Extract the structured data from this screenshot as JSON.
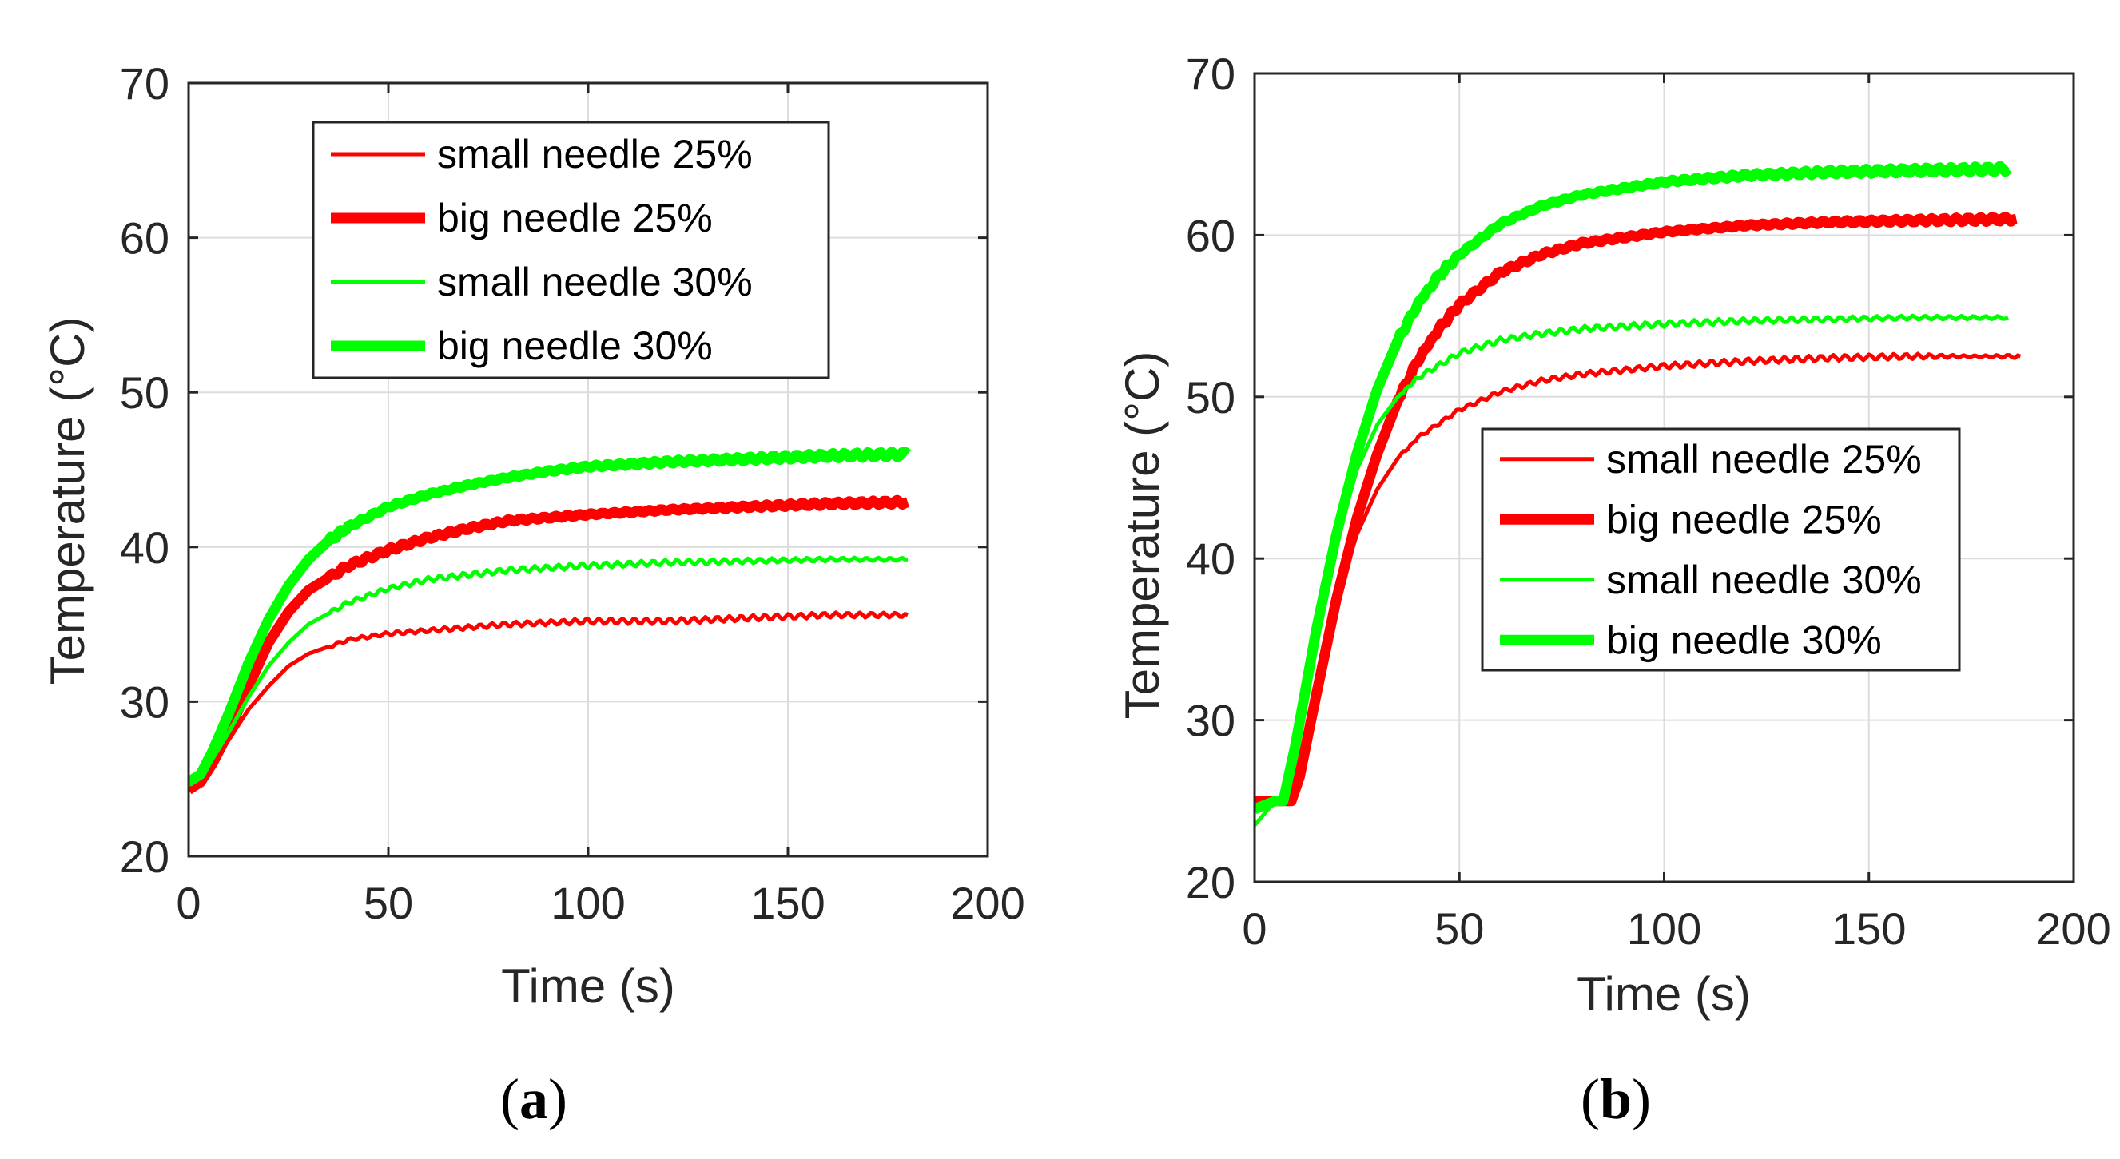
{
  "chart_data": [
    {
      "type": "line",
      "caption": {
        "open": "(",
        "letter": "a",
        "close": ")"
      },
      "xlabel": "Time (s)",
      "ylabel": "Temperature (°C)",
      "xlim": [
        0,
        200
      ],
      "ylim": [
        20,
        70
      ],
      "xticks": [
        0,
        50,
        100,
        150,
        200
      ],
      "yticks": [
        20,
        30,
        40,
        50,
        60,
        70
      ],
      "grid": true,
      "legend_position": "top-center",
      "series": [
        {
          "name": "small needle 25%",
          "color": "#ff0000",
          "weight": "thin",
          "x": [
            0,
            3,
            6,
            10,
            15,
            20,
            25,
            30,
            40,
            50,
            60,
            80,
            100,
            120,
            140,
            160,
            180
          ],
          "y": [
            24.5,
            25,
            26,
            27.5,
            29.5,
            31,
            32.3,
            33.1,
            34,
            34.4,
            34.6,
            35,
            35.2,
            35.2,
            35.4,
            35.6,
            35.6
          ]
        },
        {
          "name": "big needle 25%",
          "color": "#ff0000",
          "weight": "thick",
          "x": [
            0,
            3,
            6,
            10,
            15,
            20,
            25,
            30,
            40,
            50,
            60,
            70,
            80,
            100,
            120,
            140,
            160,
            180
          ],
          "y": [
            24.3,
            24.8,
            26,
            28,
            31,
            33.8,
            35.8,
            37.2,
            38.8,
            39.8,
            40.6,
            41.2,
            41.7,
            42.1,
            42.4,
            42.6,
            42.8,
            42.9
          ]
        },
        {
          "name": "small needle 30%",
          "color": "#00ff00",
          "weight": "thin",
          "x": [
            0,
            3,
            6,
            10,
            15,
            20,
            25,
            30,
            40,
            50,
            60,
            80,
            100,
            120,
            140,
            160,
            180
          ],
          "y": [
            24.6,
            25.2,
            26.3,
            28,
            30.3,
            32.3,
            33.8,
            35,
            36.4,
            37.3,
            37.9,
            38.5,
            38.8,
            39,
            39.1,
            39.2,
            39.2
          ]
        },
        {
          "name": "big needle 30%",
          "color": "#00ff00",
          "weight": "thick",
          "x": [
            0,
            3,
            6,
            10,
            15,
            20,
            25,
            30,
            35,
            40,
            50,
            60,
            70,
            80,
            90,
            100,
            120,
            140,
            160,
            180
          ],
          "y": [
            24.8,
            25.3,
            26.8,
            29.2,
            32.5,
            35.3,
            37.5,
            39.2,
            40.4,
            41.3,
            42.6,
            43.4,
            44,
            44.5,
            44.9,
            45.2,
            45.5,
            45.7,
            45.9,
            46
          ]
        }
      ]
    },
    {
      "type": "line",
      "caption": {
        "open": "(",
        "letter": "b",
        "close": ")"
      },
      "xlabel": "Time (s)",
      "ylabel": "Temperature (°C)",
      "xlim": [
        0,
        200
      ],
      "ylim": [
        20,
        70
      ],
      "xticks": [
        0,
        50,
        100,
        150,
        200
      ],
      "yticks": [
        20,
        30,
        40,
        50,
        60,
        70
      ],
      "grid": true,
      "legend_position": "center-right",
      "series": [
        {
          "name": "small needle 25%",
          "color": "#ff0000",
          "weight": "thin",
          "x": [
            0,
            5,
            8,
            10,
            15,
            20,
            25,
            30,
            35,
            40,
            50,
            60,
            70,
            80,
            100,
            120,
            140,
            160,
            187
          ],
          "y": [
            25,
            25,
            25,
            26.5,
            32,
            37.5,
            41.5,
            44.3,
            46.2,
            47.5,
            49.2,
            50.3,
            51,
            51.4,
            51.9,
            52.2,
            52.4,
            52.5,
            52.5
          ]
        },
        {
          "name": "big needle 25%",
          "color": "#ff0000",
          "weight": "thick",
          "x": [
            0,
            5,
            9,
            11,
            15,
            20,
            25,
            30,
            35,
            40,
            45,
            50,
            60,
            70,
            80,
            100,
            120,
            140,
            160,
            186
          ],
          "y": [
            25,
            25,
            25,
            26.5,
            31.5,
            37.5,
            42.5,
            46.5,
            49.8,
            52.3,
            54.2,
            55.7,
            57.7,
            58.8,
            59.5,
            60.2,
            60.6,
            60.8,
            60.9,
            61
          ]
        },
        {
          "name": "small needle 30%",
          "color": "#00ff00",
          "weight": "thin",
          "x": [
            0,
            5,
            7,
            10,
            15,
            20,
            25,
            30,
            35,
            40,
            50,
            60,
            70,
            80,
            100,
            120,
            140,
            160,
            184
          ],
          "y": [
            23.5,
            25,
            25,
            28,
            35,
            41,
            45.5,
            48.3,
            50,
            51.2,
            52.7,
            53.5,
            53.9,
            54.2,
            54.5,
            54.7,
            54.8,
            54.9,
            54.9
          ]
        },
        {
          "name": "big needle 30%",
          "color": "#00ff00",
          "weight": "thick",
          "x": [
            0,
            5,
            7,
            10,
            15,
            20,
            25,
            30,
            35,
            40,
            45,
            50,
            60,
            70,
            80,
            100,
            120,
            140,
            160,
            184
          ],
          "y": [
            24.5,
            25,
            25,
            28.5,
            35.5,
            41.5,
            46.5,
            50.5,
            53.5,
            55.8,
            57.5,
            58.8,
            60.7,
            61.8,
            62.5,
            63.3,
            63.7,
            63.9,
            64,
            64.1
          ]
        }
      ]
    }
  ]
}
